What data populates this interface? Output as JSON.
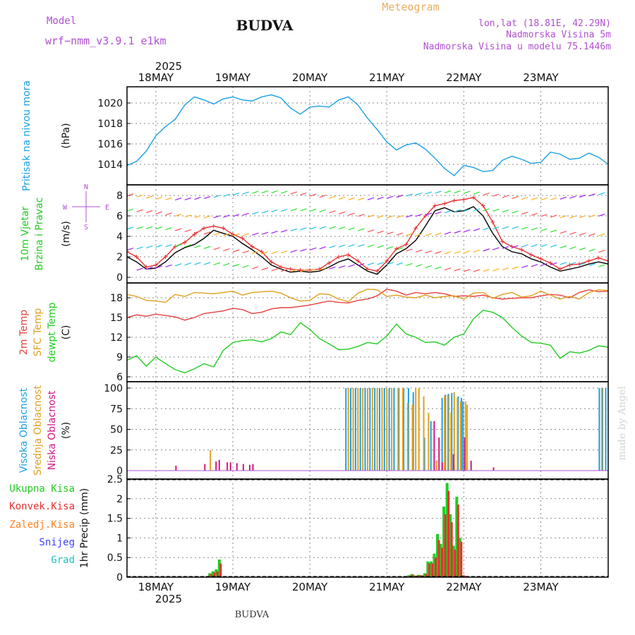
{
  "header": {
    "model_label": "Model",
    "model_name": "wrf−nmm_v3.9.1  e1km",
    "title": "BUDVA",
    "meteogram_label": "Meteogram",
    "coords": "lon,lat (18.81E, 42.29N)",
    "elevation": "Nadmorska Visina 5m",
    "model_elevation": "Nadmorska Visina u modelu 75.1446m",
    "year": "2025",
    "footer_title": "BUDVA",
    "credit": "made by Angel"
  },
  "colors": {
    "pressure": "#1aa0e6",
    "wind_speed": "#000000",
    "wind_gust": "#e83030",
    "t2m": "#e84040",
    "sfc": "#e0a020",
    "dewpt": "#22cc22",
    "high_cloud": "#1aa0e6",
    "mid_cloud": "#e0a020",
    "low_cloud": "#d01880",
    "total_precip": "#22cc22",
    "conv_precip": "#e83030",
    "frozen_precip": "#ff8020",
    "snow": "#4040ff",
    "hail": "#20c0c0",
    "text_purple": "#b050d0",
    "text_orange": "#e8b060"
  },
  "x_axis": {
    "days": [
      "18MAY",
      "19MAY",
      "20MAY",
      "21MAY",
      "22MAY",
      "23MAY"
    ],
    "start_hour": -9,
    "end_hour": 141
  },
  "chart_data": [
    {
      "type": "line",
      "id": "pressure",
      "ylabels": [
        "Pritisak na nivou mora"
      ],
      "unit": "(hPa)",
      "yticks": [
        1014,
        1016,
        1018,
        1020
      ],
      "ylim": [
        1012.8,
        1021.1
      ],
      "x_hours": [
        -9,
        -6,
        -3,
        0,
        3,
        6,
        9,
        12,
        15,
        18,
        21,
        24,
        27,
        30,
        33,
        36,
        39,
        42,
        45,
        48,
        51,
        54,
        57,
        60,
        63,
        66,
        69,
        72,
        75,
        78,
        81,
        84,
        87,
        90,
        93,
        96,
        99,
        102,
        105,
        108,
        111,
        114,
        117,
        120,
        123,
        126,
        129,
        132,
        135,
        138,
        141
      ],
      "series": [
        {
          "name": "",
          "values": [
            1013.9,
            1014.3,
            1015.3,
            1016.8,
            1017.7,
            1018.4,
            1019.8,
            1020.6,
            1020.3,
            1019.9,
            1020.4,
            1020.6,
            1020.3,
            1020.2,
            1020.6,
            1020.8,
            1020.5,
            1019.5,
            1018.9,
            1019.6,
            1019.7,
            1019.6,
            1020.3,
            1020.6,
            1019.8,
            1018.5,
            1017.4,
            1016.2,
            1015.4,
            1015.9,
            1016.1,
            1015.5,
            1014.6,
            1013.6,
            1012.9,
            1013.9,
            1013.7,
            1013.3,
            1013.4,
            1014.4,
            1014.8,
            1014.5,
            1014.1,
            1014.2,
            1015.2,
            1015.0,
            1014.5,
            1014.6,
            1015.1,
            1014.7,
            1014.0
          ]
        }
      ]
    },
    {
      "type": "line",
      "id": "wind",
      "ylabels": [
        "10m Vjetar",
        "Brzina i Pravac"
      ],
      "unit": "(m/s)",
      "compass": [
        "N",
        "W",
        "E",
        "S"
      ],
      "yticks": [
        0,
        2,
        4,
        6,
        8
      ],
      "ylim": [
        -0.4,
        9.0
      ],
      "x_hours": [
        -9,
        -6,
        -3,
        0,
        3,
        6,
        9,
        12,
        15,
        18,
        21,
        24,
        27,
        30,
        33,
        36,
        39,
        42,
        45,
        48,
        51,
        54,
        57,
        60,
        63,
        66,
        69,
        72,
        75,
        78,
        81,
        84,
        87,
        90,
        93,
        96,
        99,
        102,
        105,
        108,
        111,
        114,
        117,
        120,
        123,
        126,
        129,
        132,
        135,
        138,
        141
      ],
      "series": [
        {
          "name": "",
          "values": [
            2.0,
            1.5,
            0.8,
            0.9,
            1.5,
            2.4,
            2.9,
            3.2,
            3.8,
            4.6,
            4.3,
            4.0,
            3.3,
            2.7,
            2.0,
            1.2,
            0.8,
            0.5,
            0.6,
            0.5,
            0.6,
            1.0,
            1.5,
            1.8,
            1.2,
            0.6,
            0.3,
            1.2,
            2.3,
            2.8,
            3.6,
            5.0,
            6.5,
            6.8,
            6.4,
            6.5,
            6.9,
            6.0,
            4.3,
            3.0,
            2.5,
            2.3,
            1.8,
            1.5,
            1.0,
            0.6,
            0.8,
            1.0,
            1.3,
            1.5,
            1.3
          ]
        },
        {
          "name": "",
          "values": [
            2.5,
            2.0,
            1.0,
            1.2,
            2.0,
            3.0,
            3.4,
            4.2,
            4.8,
            5.0,
            4.8,
            4.2,
            3.8,
            3.0,
            2.5,
            1.5,
            1.0,
            0.8,
            0.7,
            0.7,
            0.8,
            1.4,
            2.0,
            2.2,
            1.6,
            0.8,
            0.6,
            1.6,
            2.8,
            3.2,
            4.8,
            6.0,
            7.0,
            7.2,
            7.5,
            7.6,
            7.8,
            7.0,
            5.4,
            3.5,
            3.0,
            2.7,
            2.2,
            1.8,
            1.4,
            0.8,
            1.2,
            1.3,
            1.6,
            1.9,
            1.6
          ]
        }
      ]
    },
    {
      "type": "line",
      "id": "temperature",
      "ylabels": [
        "2m Temp",
        "SFC Temp",
        "dewpt Temp"
      ],
      "unit": "(C)",
      "yticks": [
        6,
        9,
        12,
        15,
        18
      ],
      "ylim": [
        5.6,
        19.5
      ],
      "x_hours": [
        -9,
        -6,
        -3,
        0,
        3,
        6,
        9,
        12,
        15,
        18,
        21,
        24,
        27,
        30,
        33,
        36,
        39,
        42,
        45,
        48,
        51,
        54,
        57,
        60,
        63,
        66,
        69,
        72,
        75,
        78,
        81,
        84,
        87,
        90,
        93,
        96,
        99,
        102,
        105,
        108,
        111,
        114,
        117,
        120,
        123,
        126,
        129,
        132,
        135,
        138,
        141
      ],
      "series": [
        {
          "name": "",
          "values": [
            15.0,
            15.4,
            15.2,
            15.5,
            15.3,
            15.1,
            14.6,
            15.0,
            15.6,
            15.8,
            16.0,
            16.4,
            16.2,
            15.6,
            15.8,
            16.3,
            16.5,
            16.5,
            16.7,
            16.9,
            17.2,
            17.5,
            17.3,
            17.2,
            17.6,
            17.8,
            18.3,
            19.3,
            19.0,
            18.4,
            18.8,
            18.6,
            18.8,
            18.6,
            18.2,
            18.3,
            18.2,
            18.4,
            18.0,
            17.8,
            17.9,
            18.0,
            18.0,
            18.3,
            18.5,
            18.4,
            18.0,
            18.8,
            19.2,
            18.9,
            19.0
          ]
        },
        {
          "name": "",
          "values": [
            18.5,
            18.2,
            17.6,
            17.5,
            17.3,
            18.5,
            18.2,
            18.8,
            18.7,
            18.6,
            18.8,
            19.0,
            18.4,
            18.8,
            18.9,
            19.0,
            18.7,
            18.0,
            17.5,
            17.6,
            18.6,
            18.5,
            17.8,
            17.4,
            18.7,
            19.3,
            19.2,
            18.2,
            18.4,
            18.1,
            18.0,
            18.4,
            18.0,
            18.2,
            18.3,
            17.8,
            18.7,
            18.8,
            17.9,
            18.5,
            18.8,
            18.1,
            18.3,
            19.0,
            18.4,
            17.8,
            18.2,
            17.8,
            18.8,
            19.2,
            19.1
          ]
        },
        {
          "name": "",
          "values": [
            8.5,
            9.2,
            7.6,
            9.0,
            8.0,
            7.1,
            6.6,
            7.2,
            8.0,
            7.5,
            10.0,
            11.2,
            11.5,
            11.6,
            11.3,
            11.8,
            12.8,
            12.4,
            14.2,
            13.2,
            11.8,
            11.0,
            10.1,
            10.2,
            10.6,
            11.2,
            11.0,
            12.2,
            14.0,
            12.5,
            12.0,
            11.2,
            11.3,
            10.8,
            12.0,
            12.5,
            14.8,
            16.1,
            15.8,
            15.0,
            13.5,
            12.2,
            11.2,
            11.1,
            10.8,
            8.8,
            9.8,
            9.6,
            10.0,
            10.7,
            10.5
          ]
        }
      ]
    },
    {
      "type": "bar",
      "id": "clouds",
      "ylabels": [
        "Visoka Oblacnost",
        "Srednja Oblacnost",
        "Niska Oblacnost"
      ],
      "unit": "(%)",
      "yticks": [
        0,
        25,
        50,
        75,
        100
      ],
      "ylim": [
        0,
        100
      ],
      "series": [
        {
          "name": "",
          "points": [
            [
              59.5,
              100
            ],
            [
              61.0,
              100
            ],
            [
              62.5,
              100
            ],
            [
              64.0,
              100
            ],
            [
              65.5,
              100
            ],
            [
              67.0,
              100
            ],
            [
              68.5,
              100
            ],
            [
              70.0,
              100
            ],
            [
              71.5,
              100
            ],
            [
              73.0,
              100
            ],
            [
              74.5,
              100
            ],
            [
              76.0,
              100
            ],
            [
              77.5,
              100
            ],
            [
              79.0,
              100
            ],
            [
              80.5,
              95
            ],
            [
              84.0,
              40
            ],
            [
              86.0,
              60
            ],
            [
              89.5,
              88
            ],
            [
              90.5,
              92
            ],
            [
              91.5,
              93
            ],
            [
              92.5,
              94
            ],
            [
              94.5,
              90
            ],
            [
              95.5,
              88
            ],
            [
              96.0,
              84
            ],
            [
              138.5,
              100
            ],
            [
              139.5,
              100
            ],
            [
              140.5,
              100
            ]
          ]
        },
        {
          "name": "",
          "points": [
            [
              17.0,
              25
            ],
            [
              60.0,
              100
            ],
            [
              61.5,
              100
            ],
            [
              63.0,
              100
            ],
            [
              64.5,
              100
            ],
            [
              66.0,
              100
            ],
            [
              67.5,
              100
            ],
            [
              69.0,
              100
            ],
            [
              70.5,
              100
            ],
            [
              72.0,
              100
            ],
            [
              73.5,
              100
            ],
            [
              75.5,
              100
            ],
            [
              77.0,
              100
            ],
            [
              78.5,
              82
            ],
            [
              80.0,
              80
            ],
            [
              81.0,
              100
            ],
            [
              82.0,
              100
            ],
            [
              83.5,
              90
            ],
            [
              85.0,
              70
            ],
            [
              87.5,
              12
            ],
            [
              90.0,
              90
            ],
            [
              91.0,
              92
            ],
            [
              92.0,
              70
            ],
            [
              93.0,
              95
            ],
            [
              94.0,
              88
            ],
            [
              95.0,
              84
            ],
            [
              96.5,
              84
            ],
            [
              97.0,
              80
            ],
            [
              139.0,
              100
            ]
          ]
        },
        {
          "name": "",
          "points": [
            [
              6.0,
              6
            ],
            [
              15.0,
              8
            ],
            [
              18.5,
              11
            ],
            [
              19.5,
              13
            ],
            [
              22.0,
              10
            ],
            [
              23.0,
              10
            ],
            [
              25.0,
              9
            ],
            [
              27.0,
              8
            ],
            [
              29.0,
              7
            ],
            [
              30.0,
              8
            ],
            [
              86.5,
              60
            ],
            [
              88.0,
              40
            ],
            [
              89.0,
              10
            ],
            [
              92.5,
              20
            ],
            [
              96.0,
              40
            ],
            [
              98.0,
              12
            ],
            [
              105.0,
              4
            ],
            [
              141.0,
              100
            ]
          ]
        }
      ]
    },
    {
      "type": "bar",
      "id": "precip",
      "ylabels": [
        "Ukupna Kisa",
        "Konvek.Kisa",
        "Zaledj.Kisa",
        "Snijeg",
        "Grad"
      ],
      "unit": "1hr Precip (mm)",
      "yticks": [
        0,
        0.5,
        1,
        1.5,
        2,
        2.5
      ],
      "ytick_labels": [
        "0",
        "0.5",
        "1",
        "1.5",
        "2",
        "2.5"
      ],
      "ylim": [
        0,
        2.5
      ],
      "series": [
        {
          "name": "",
          "points": [
            [
              17,
              0.1
            ],
            [
              18,
              0.15
            ],
            [
              19,
              0.2
            ],
            [
              20,
              0.45
            ],
            [
              78,
              0.03
            ],
            [
              79,
              0.05
            ],
            [
              80,
              0.08
            ],
            [
              81,
              0.04
            ],
            [
              82,
              0.06
            ],
            [
              83,
              0.05
            ],
            [
              84,
              0.1
            ],
            [
              85,
              0.4
            ],
            [
              86,
              0.4
            ],
            [
              87,
              0.6
            ],
            [
              88,
              1.1
            ],
            [
              89,
              0.85
            ],
            [
              90,
              1.8
            ],
            [
              91,
              2.4
            ],
            [
              92,
              1.6
            ],
            [
              93,
              0.8
            ],
            [
              94,
              2.05
            ],
            [
              95,
              1.0
            ],
            [
              96,
              0.05
            ]
          ]
        },
        {
          "name": "",
          "points": [
            [
              17,
              0.08
            ],
            [
              18,
              0.12
            ],
            [
              19,
              0.15
            ],
            [
              20,
              0.35
            ],
            [
              78,
              0.02
            ],
            [
              79,
              0.04
            ],
            [
              80,
              0.06
            ],
            [
              81,
              0.03
            ],
            [
              82,
              0.05
            ],
            [
              83,
              0.04
            ],
            [
              84,
              0.08
            ],
            [
              85,
              0.35
            ],
            [
              86,
              0.35
            ],
            [
              87,
              0.5
            ],
            [
              88,
              0.95
            ],
            [
              89,
              0.75
            ],
            [
              90,
              1.6
            ],
            [
              91,
              2.2
            ],
            [
              92,
              1.4
            ],
            [
              93,
              0.7
            ],
            [
              94,
              1.85
            ],
            [
              95,
              0.9
            ],
            [
              96,
              0.04
            ]
          ]
        }
      ]
    }
  ]
}
